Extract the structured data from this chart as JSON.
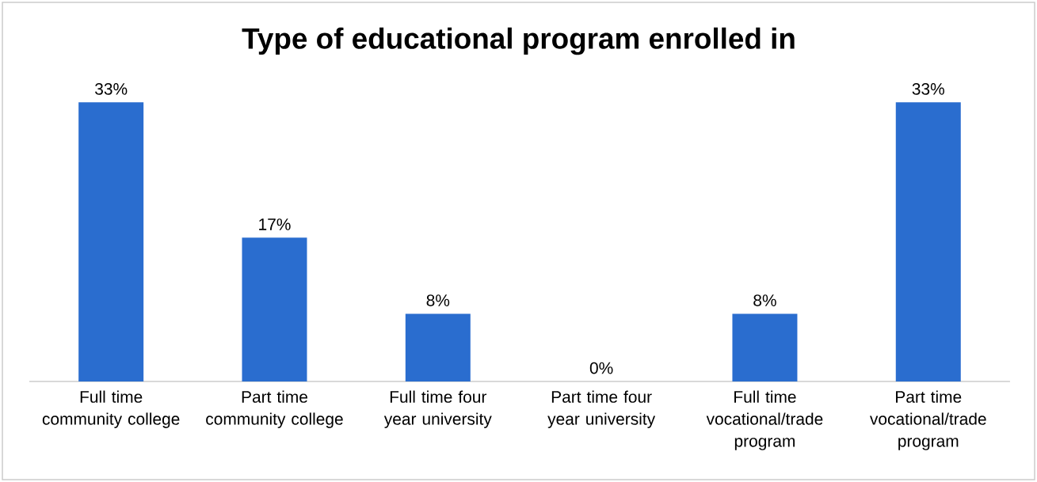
{
  "chart_data": {
    "type": "bar",
    "title": "Type of educational program enrolled in",
    "categories": [
      "Full time community college",
      "Part time community college",
      "Full time four year university",
      "Part time four year university",
      "Full time vocational/trade program",
      "Part time vocational/trade program"
    ],
    "values": [
      33,
      17,
      8,
      0,
      8,
      33
    ],
    "value_labels": [
      "33%",
      "17%",
      "8%",
      "0%",
      "8%",
      "33%"
    ],
    "color": "#2a6dcf"
  }
}
